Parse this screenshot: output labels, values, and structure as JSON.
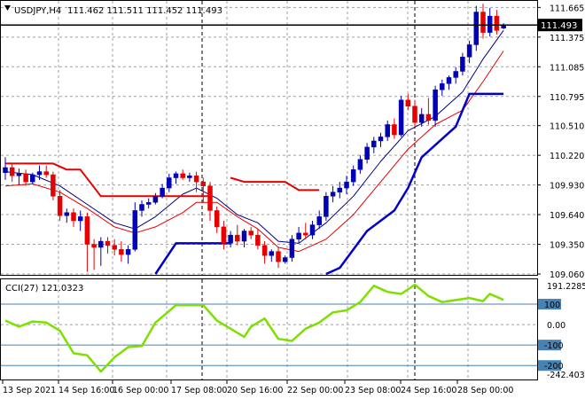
{
  "header": {
    "symbol_tf": "USDJPY,H4",
    "ohlc": "111.462 111.511 111.452 111.493",
    "triangle_icon": "triangle-down-icon"
  },
  "price_panel": {
    "current_price_label": "111.493",
    "y_ticks": [
      "111.665",
      "111.375",
      "111.085",
      "110.795",
      "110.510",
      "110.220",
      "109.930",
      "109.640",
      "109.350",
      "109.060"
    ],
    "y_tick_values": [
      111.665,
      111.375,
      111.085,
      110.795,
      110.51,
      110.22,
      109.93,
      109.64,
      109.35,
      109.06
    ]
  },
  "cci_panel": {
    "label": "CCI(27) 121.0323",
    "y_ticks": [
      "191.2285",
      "100",
      "0.00",
      "-100",
      "-200",
      "-242.4031"
    ],
    "levels": [
      100,
      0,
      -100,
      -200
    ],
    "range": [
      -242.4031,
      191.2285
    ]
  },
  "x_axis": {
    "labels": [
      "13 Sep 2021",
      "14 Sep 16:00",
      "16 Sep 00:00",
      "17 Sep 08:00",
      "20 Sep 16:00",
      "22 Sep 00:00",
      "23 Sep 08:00",
      "24 Sep 16:00",
      "28 Sep 00:00"
    ]
  },
  "colors": {
    "bull": "#0000b4",
    "bear": "#e60000",
    "ma_fast": "#000080",
    "ma_slow": "#e60000",
    "upper_channel": "#e60000",
    "lower_channel": "#0000cc",
    "cci": "#7ee000",
    "level_line": "#4682b4",
    "grid": "#a0a0a0"
  },
  "chart_data": {
    "type": "candlestick",
    "symbol": "USDJPY",
    "timeframe": "H4",
    "ylim": [
      109.06,
      111.72
    ],
    "candles": [
      {
        "o": 110.05,
        "h": 110.2,
        "l": 109.98,
        "c": 110.1
      },
      {
        "o": 110.1,
        "h": 110.14,
        "l": 109.96,
        "c": 110.02
      },
      {
        "o": 110.02,
        "h": 110.09,
        "l": 109.93,
        "c": 110.04
      },
      {
        "o": 110.04,
        "h": 110.08,
        "l": 109.92,
        "c": 109.96
      },
      {
        "o": 109.96,
        "h": 110.05,
        "l": 109.94,
        "c": 110.03
      },
      {
        "o": 110.03,
        "h": 110.12,
        "l": 109.98,
        "c": 110.06
      },
      {
        "o": 110.06,
        "h": 110.12,
        "l": 110.0,
        "c": 110.03
      },
      {
        "o": 110.03,
        "h": 110.06,
        "l": 109.78,
        "c": 109.82
      },
      {
        "o": 109.82,
        "h": 109.88,
        "l": 109.58,
        "c": 109.63
      },
      {
        "o": 109.63,
        "h": 109.7,
        "l": 109.56,
        "c": 109.66
      },
      {
        "o": 109.66,
        "h": 109.7,
        "l": 109.52,
        "c": 109.58
      },
      {
        "o": 109.58,
        "h": 109.68,
        "l": 109.48,
        "c": 109.62
      },
      {
        "o": 109.62,
        "h": 109.66,
        "l": 109.08,
        "c": 109.35
      },
      {
        "o": 109.35,
        "h": 109.4,
        "l": 109.1,
        "c": 109.32
      },
      {
        "o": 109.32,
        "h": 109.42,
        "l": 109.14,
        "c": 109.38
      },
      {
        "o": 109.38,
        "h": 109.42,
        "l": 109.26,
        "c": 109.34
      },
      {
        "o": 109.34,
        "h": 109.4,
        "l": 109.24,
        "c": 109.3
      },
      {
        "o": 109.3,
        "h": 109.38,
        "l": 109.18,
        "c": 109.25
      },
      {
        "o": 109.25,
        "h": 109.34,
        "l": 109.16,
        "c": 109.3
      },
      {
        "o": 109.3,
        "h": 109.76,
        "l": 109.28,
        "c": 109.68
      },
      {
        "o": 109.68,
        "h": 109.78,
        "l": 109.62,
        "c": 109.74
      },
      {
        "o": 109.74,
        "h": 109.8,
        "l": 109.7,
        "c": 109.76
      },
      {
        "o": 109.76,
        "h": 109.85,
        "l": 109.74,
        "c": 109.82
      },
      {
        "o": 109.82,
        "h": 109.94,
        "l": 109.8,
        "c": 109.9
      },
      {
        "o": 109.9,
        "h": 110.04,
        "l": 109.86,
        "c": 110.0
      },
      {
        "o": 110.0,
        "h": 110.06,
        "l": 109.94,
        "c": 110.04
      },
      {
        "o": 110.04,
        "h": 110.08,
        "l": 109.98,
        "c": 110.0
      },
      {
        "o": 110.0,
        "h": 110.05,
        "l": 109.96,
        "c": 110.02
      },
      {
        "o": 110.02,
        "h": 110.06,
        "l": 109.86,
        "c": 109.96
      },
      {
        "o": 109.96,
        "h": 110.0,
        "l": 109.76,
        "c": 109.92
      },
      {
        "o": 109.92,
        "h": 109.96,
        "l": 109.58,
        "c": 109.68
      },
      {
        "o": 109.68,
        "h": 109.72,
        "l": 109.46,
        "c": 109.52
      },
      {
        "o": 109.52,
        "h": 109.58,
        "l": 109.3,
        "c": 109.36
      },
      {
        "o": 109.36,
        "h": 109.48,
        "l": 109.32,
        "c": 109.44
      },
      {
        "o": 109.44,
        "h": 109.54,
        "l": 109.34,
        "c": 109.38
      },
      {
        "o": 109.38,
        "h": 109.5,
        "l": 109.32,
        "c": 109.48
      },
      {
        "o": 109.48,
        "h": 109.52,
        "l": 109.4,
        "c": 109.44
      },
      {
        "o": 109.44,
        "h": 109.5,
        "l": 109.3,
        "c": 109.34
      },
      {
        "o": 109.34,
        "h": 109.38,
        "l": 109.16,
        "c": 109.24
      },
      {
        "o": 109.24,
        "h": 109.3,
        "l": 109.18,
        "c": 109.28
      },
      {
        "o": 109.28,
        "h": 109.32,
        "l": 109.12,
        "c": 109.18
      },
      {
        "o": 109.18,
        "h": 109.24,
        "l": 109.16,
        "c": 109.22
      },
      {
        "o": 109.22,
        "h": 109.44,
        "l": 109.18,
        "c": 109.4
      },
      {
        "o": 109.4,
        "h": 109.52,
        "l": 109.36,
        "c": 109.46
      },
      {
        "o": 109.46,
        "h": 109.56,
        "l": 109.4,
        "c": 109.44
      },
      {
        "o": 109.44,
        "h": 109.58,
        "l": 109.4,
        "c": 109.54
      },
      {
        "o": 109.54,
        "h": 109.68,
        "l": 109.5,
        "c": 109.62
      },
      {
        "o": 109.62,
        "h": 109.86,
        "l": 109.58,
        "c": 109.82
      },
      {
        "o": 109.82,
        "h": 109.92,
        "l": 109.76,
        "c": 109.86
      },
      {
        "o": 109.86,
        "h": 109.96,
        "l": 109.8,
        "c": 109.9
      },
      {
        "o": 109.9,
        "h": 110.02,
        "l": 109.84,
        "c": 109.96
      },
      {
        "o": 109.96,
        "h": 110.12,
        "l": 109.92,
        "c": 110.08
      },
      {
        "o": 110.08,
        "h": 110.22,
        "l": 110.04,
        "c": 110.18
      },
      {
        "o": 110.18,
        "h": 110.34,
        "l": 110.14,
        "c": 110.3
      },
      {
        "o": 110.3,
        "h": 110.4,
        "l": 110.24,
        "c": 110.36
      },
      {
        "o": 110.36,
        "h": 110.44,
        "l": 110.3,
        "c": 110.4
      },
      {
        "o": 110.4,
        "h": 110.56,
        "l": 110.36,
        "c": 110.52
      },
      {
        "o": 110.52,
        "h": 110.58,
        "l": 110.38,
        "c": 110.42
      },
      {
        "o": 110.42,
        "h": 110.8,
        "l": 110.4,
        "c": 110.76
      },
      {
        "o": 110.76,
        "h": 110.82,
        "l": 110.66,
        "c": 110.7
      },
      {
        "o": 110.7,
        "h": 110.76,
        "l": 110.5,
        "c": 110.54
      },
      {
        "o": 110.54,
        "h": 110.68,
        "l": 110.5,
        "c": 110.62
      },
      {
        "o": 110.62,
        "h": 110.78,
        "l": 110.52,
        "c": 110.56
      },
      {
        "o": 110.56,
        "h": 110.9,
        "l": 110.5,
        "c": 110.86
      },
      {
        "o": 110.86,
        "h": 110.96,
        "l": 110.8,
        "c": 110.92
      },
      {
        "o": 110.92,
        "h": 111.0,
        "l": 110.86,
        "c": 110.98
      },
      {
        "o": 110.98,
        "h": 111.08,
        "l": 110.92,
        "c": 111.04
      },
      {
        "o": 111.04,
        "h": 111.22,
        "l": 111.0,
        "c": 111.18
      },
      {
        "o": 111.18,
        "h": 111.34,
        "l": 111.12,
        "c": 111.3
      },
      {
        "o": 111.3,
        "h": 111.68,
        "l": 111.24,
        "c": 111.62
      },
      {
        "o": 111.62,
        "h": 111.7,
        "l": 111.36,
        "c": 111.42
      },
      {
        "o": 111.42,
        "h": 111.66,
        "l": 111.38,
        "c": 111.58
      },
      {
        "o": 111.58,
        "h": 111.64,
        "l": 111.4,
        "c": 111.44
      },
      {
        "o": 111.462,
        "h": 111.511,
        "l": 111.452,
        "c": 111.493
      }
    ],
    "ma_fast": [
      [
        0,
        110.06
      ],
      [
        4,
        110.03
      ],
      [
        8,
        109.92
      ],
      [
        12,
        109.74
      ],
      [
        16,
        109.56
      ],
      [
        19,
        109.5
      ],
      [
        22,
        109.62
      ],
      [
        26,
        109.84
      ],
      [
        28,
        109.9
      ],
      [
        31,
        109.8
      ],
      [
        34,
        109.64
      ],
      [
        37,
        109.56
      ],
      [
        40,
        109.38
      ],
      [
        43,
        109.36
      ],
      [
        47,
        109.56
      ],
      [
        51,
        109.82
      ],
      [
        55,
        110.16
      ],
      [
        59,
        110.46
      ],
      [
        63,
        110.6
      ],
      [
        67,
        110.84
      ],
      [
        70,
        111.16
      ],
      [
        73,
        111.44
      ]
    ],
    "ma_slow": [
      [
        0,
        109.92
      ],
      [
        4,
        109.94
      ],
      [
        8,
        109.86
      ],
      [
        12,
        109.7
      ],
      [
        16,
        109.52
      ],
      [
        19,
        109.46
      ],
      [
        22,
        109.52
      ],
      [
        26,
        109.66
      ],
      [
        28,
        109.76
      ],
      [
        31,
        109.76
      ],
      [
        34,
        109.62
      ],
      [
        37,
        109.5
      ],
      [
        40,
        109.32
      ],
      [
        43,
        109.28
      ],
      [
        47,
        109.4
      ],
      [
        51,
        109.64
      ],
      [
        55,
        109.96
      ],
      [
        59,
        110.28
      ],
      [
        63,
        110.52
      ],
      [
        67,
        110.66
      ],
      [
        70,
        110.94
      ],
      [
        73,
        111.24
      ]
    ],
    "upper_channel": [
      [
        [
          0,
          110.14
        ],
        [
          7,
          110.14
        ],
        [
          9,
          110.08
        ],
        [
          11,
          110.08
        ],
        [
          14,
          109.82
        ],
        [
          30,
          109.82
        ]
      ],
      [
        [
          33,
          110.0
        ],
        [
          35,
          109.96
        ],
        [
          41,
          109.96
        ],
        [
          43,
          109.88
        ],
        [
          46,
          109.88
        ]
      ]
    ],
    "lower_channel": [
      [
        [
          22,
          109.06
        ],
        [
          25,
          109.36
        ],
        [
          33,
          109.36
        ]
      ],
      [
        [
          47,
          109.06
        ],
        [
          49,
          109.12
        ],
        [
          53,
          109.48
        ],
        [
          57,
          109.68
        ],
        [
          59,
          109.9
        ],
        [
          61,
          110.2
        ],
        [
          63,
          110.32
        ],
        [
          66,
          110.5
        ],
        [
          68,
          110.82
        ],
        [
          73,
          110.82
        ]
      ]
    ],
    "cci_series": [
      [
        0,
        20
      ],
      [
        2,
        -10
      ],
      [
        4,
        15
      ],
      [
        6,
        10
      ],
      [
        8,
        -30
      ],
      [
        10,
        -140
      ],
      [
        12,
        -150
      ],
      [
        14,
        -230
      ],
      [
        16,
        -160
      ],
      [
        18,
        -110
      ],
      [
        20,
        -105
      ],
      [
        22,
        10
      ],
      [
        25,
        95
      ],
      [
        29,
        95
      ],
      [
        31,
        20
      ],
      [
        33,
        -20
      ],
      [
        35,
        -60
      ],
      [
        36,
        -10
      ],
      [
        38,
        30
      ],
      [
        40,
        -70
      ],
      [
        42,
        -80
      ],
      [
        44,
        -20
      ],
      [
        46,
        10
      ],
      [
        48,
        60
      ],
      [
        50,
        70
      ],
      [
        52,
        110
      ],
      [
        54,
        190
      ],
      [
        56,
        160
      ],
      [
        58,
        150
      ],
      [
        60,
        195
      ],
      [
        62,
        140
      ],
      [
        64,
        110
      ],
      [
        66,
        120
      ],
      [
        68,
        130
      ],
      [
        70,
        115
      ],
      [
        71,
        150
      ],
      [
        73,
        121
      ]
    ]
  }
}
